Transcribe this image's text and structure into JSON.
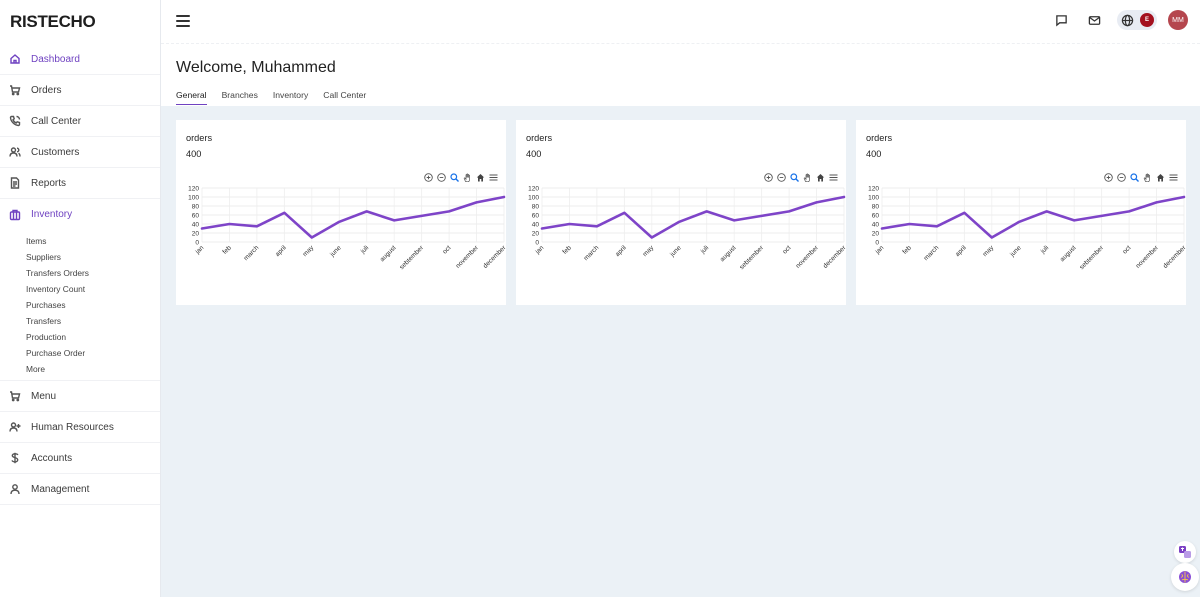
{
  "brand": {
    "name_first": "R",
    "name_rest": "ISTECHO",
    "accent": "#6f42c1"
  },
  "sidebar": {
    "items": [
      {
        "label": "Dashboard",
        "icon": "home-icon",
        "active": true
      },
      {
        "label": "Orders",
        "icon": "cart-icon"
      },
      {
        "label": "Call Center",
        "icon": "phone-icon"
      },
      {
        "label": "Customers",
        "icon": "users-icon"
      },
      {
        "label": "Reports",
        "icon": "document-icon"
      },
      {
        "label": "Inventory",
        "icon": "box-icon",
        "active": true
      }
    ],
    "inventory_sub": [
      "Items",
      "Suppliers",
      "Transfers Orders",
      "Inventory Count",
      "Purchases",
      "Transfers",
      "Production",
      "Purchase Order",
      "More"
    ],
    "items_after": [
      {
        "label": "Menu",
        "icon": "cart-icon"
      },
      {
        "label": "Human Resources",
        "icon": "user-plus-icon"
      },
      {
        "label": "Accounts",
        "icon": "dollar-icon"
      },
      {
        "label": "Management",
        "icon": "user-icon"
      }
    ]
  },
  "header": {
    "icons": [
      "chat-icon",
      "mail-icon",
      "globe-icon"
    ],
    "language_badge": "E",
    "avatar_initials": "MM"
  },
  "welcome": {
    "title": "Welcome, Muhammed",
    "tabs": [
      {
        "label": "General",
        "active": true
      },
      {
        "label": "Branches"
      },
      {
        "label": "Inventory"
      },
      {
        "label": "Call Center"
      }
    ]
  },
  "cards": [
    {
      "title": "orders",
      "value": "400"
    },
    {
      "title": "orders",
      "value": "400"
    },
    {
      "title": "orders",
      "value": "400"
    }
  ],
  "chart_data": [
    {
      "type": "line",
      "categories": [
        "jan",
        "feb",
        "march",
        "april",
        "may",
        "june",
        "juli",
        "august",
        "sebtember",
        "oct",
        "november",
        "december"
      ],
      "series": [
        {
          "values": [
            30,
            40,
            35,
            65,
            10,
            45,
            68,
            48,
            58,
            68,
            88,
            100
          ],
          "color": "#7e44c8"
        }
      ],
      "yticks": [
        0,
        20,
        40,
        60,
        80,
        100,
        120
      ],
      "ylim": [
        0,
        120
      ],
      "grid": true
    },
    {
      "type": "line",
      "categories": [
        "jan",
        "feb",
        "march",
        "april",
        "may",
        "june",
        "juli",
        "august",
        "sebtember",
        "oct",
        "november",
        "december"
      ],
      "series": [
        {
          "values": [
            30,
            40,
            35,
            65,
            10,
            45,
            68,
            48,
            58,
            68,
            88,
            100
          ],
          "color": "#7e44c8"
        }
      ],
      "yticks": [
        0,
        20,
        40,
        60,
        80,
        100,
        120
      ],
      "ylim": [
        0,
        120
      ],
      "grid": true
    },
    {
      "type": "line",
      "categories": [
        "jan",
        "feb",
        "march",
        "april",
        "may",
        "june",
        "juli",
        "august",
        "sebtember",
        "oct",
        "november",
        "december"
      ],
      "series": [
        {
          "values": [
            30,
            40,
            35,
            65,
            10,
            45,
            68,
            48,
            58,
            68,
            88,
            100
          ],
          "color": "#7e44c8"
        }
      ],
      "yticks": [
        0,
        20,
        40,
        60,
        80,
        100,
        120
      ],
      "ylim": [
        0,
        120
      ],
      "grid": true
    }
  ],
  "chart_toolbar": [
    "zoom-in-icon",
    "zoom-out-icon",
    "magnifier-icon",
    "pan-hand-icon",
    "reset-home-icon",
    "menu-icon"
  ],
  "floating": [
    "translate-icon",
    "brain-icon"
  ]
}
